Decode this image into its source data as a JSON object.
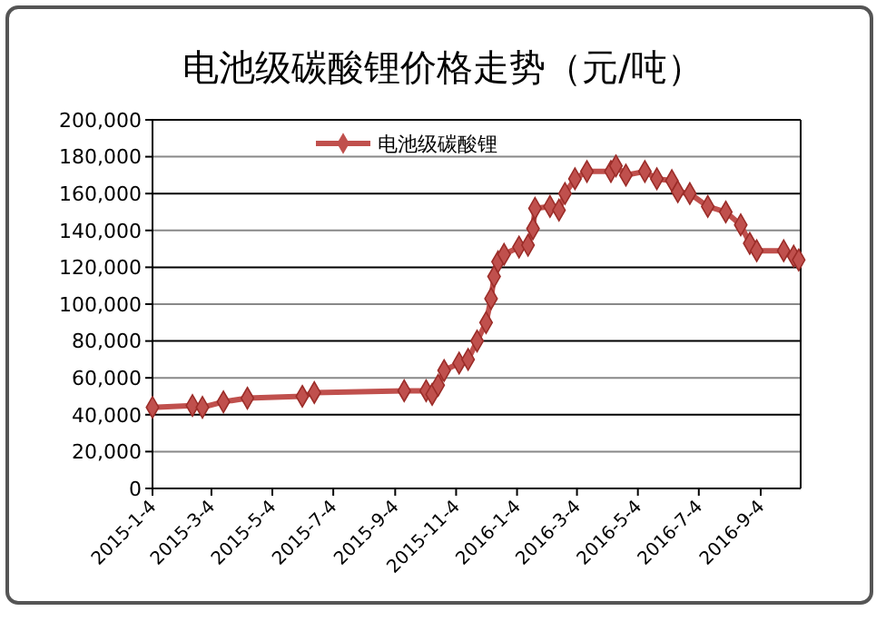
{
  "chart_data": {
    "type": "line",
    "title": "电池级碳酸锂价格走势（元/吨）",
    "x": [
      "2015-01-04",
      "2015-02-13",
      "2015-02-23",
      "2015-03-16",
      "2015-04-09",
      "2015-06-03",
      "2015-06-15",
      "2015-09-13",
      "2015-10-05",
      "2015-10-11",
      "2015-10-17",
      "2015-10-23",
      "2015-11-07",
      "2015-11-16",
      "2015-11-25",
      "2015-12-04",
      "2015-12-09",
      "2015-12-12",
      "2015-12-16",
      "2015-12-22",
      "2016-01-06",
      "2016-01-15",
      "2016-01-20",
      "2016-01-22",
      "2016-02-06",
      "2016-02-15",
      "2016-02-21",
      "2016-03-02",
      "2016-03-14",
      "2016-04-07",
      "2016-04-12",
      "2016-04-22",
      "2016-05-11",
      "2016-05-23",
      "2016-06-07",
      "2016-06-13",
      "2016-06-25",
      "2016-07-13",
      "2016-07-31",
      "2016-08-15",
      "2016-08-24",
      "2016-08-31",
      "2016-09-27",
      "2016-10-07",
      "2016-10-12"
    ],
    "series": [
      {
        "name": "电池级碳酸锂",
        "color": "#c0504d",
        "values": [
          44000,
          45000,
          44000,
          47000,
          49000,
          50000,
          52000,
          53000,
          53000,
          51000,
          56000,
          64000,
          68000,
          70000,
          80000,
          90000,
          103000,
          115000,
          123000,
          127000,
          131000,
          132000,
          141000,
          152000,
          153000,
          151000,
          160000,
          168000,
          172000,
          172000,
          175000,
          170000,
          172000,
          168000,
          167000,
          161000,
          160000,
          153000,
          150000,
          143000,
          133000,
          129000,
          129000,
          126000,
          124000
        ]
      }
    ],
    "xlim": [
      "2015-01-04",
      "2016-10-14"
    ],
    "xticks": [
      {
        "value": "2015-01-04",
        "label": "2015-1-4"
      },
      {
        "value": "2015-03-04",
        "label": "2015-3-4"
      },
      {
        "value": "2015-05-04",
        "label": "2015-5-4"
      },
      {
        "value": "2015-07-04",
        "label": "2015-7-4"
      },
      {
        "value": "2015-09-04",
        "label": "2015-9-4"
      },
      {
        "value": "2015-11-04",
        "label": "2015-11-4"
      },
      {
        "value": "2016-01-04",
        "label": "2016-1-4"
      },
      {
        "value": "2016-03-04",
        "label": "2016-3-4"
      },
      {
        "value": "2016-05-04",
        "label": "2016-5-4"
      },
      {
        "value": "2016-07-04",
        "label": "2016-7-4"
      },
      {
        "value": "2016-09-04",
        "label": "2016-9-4"
      }
    ],
    "ylim": [
      0,
      200000
    ],
    "yticks": [
      {
        "value": 0,
        "label": "0"
      },
      {
        "value": 20000,
        "label": "20,000"
      },
      {
        "value": 40000,
        "label": "40,000"
      },
      {
        "value": 60000,
        "label": "60,000"
      },
      {
        "value": 80000,
        "label": "80,000"
      },
      {
        "value": 100000,
        "label": "100,000"
      },
      {
        "value": 120000,
        "label": "120,000"
      },
      {
        "value": 140000,
        "label": "140,000"
      },
      {
        "value": 160000,
        "label": "160,000"
      },
      {
        "value": 180000,
        "label": "180,000"
      },
      {
        "value": 200000,
        "label": "200,000"
      }
    ],
    "grid": "y",
    "legend": "top left",
    "marker": "diamond",
    "line_style": "solid"
  }
}
